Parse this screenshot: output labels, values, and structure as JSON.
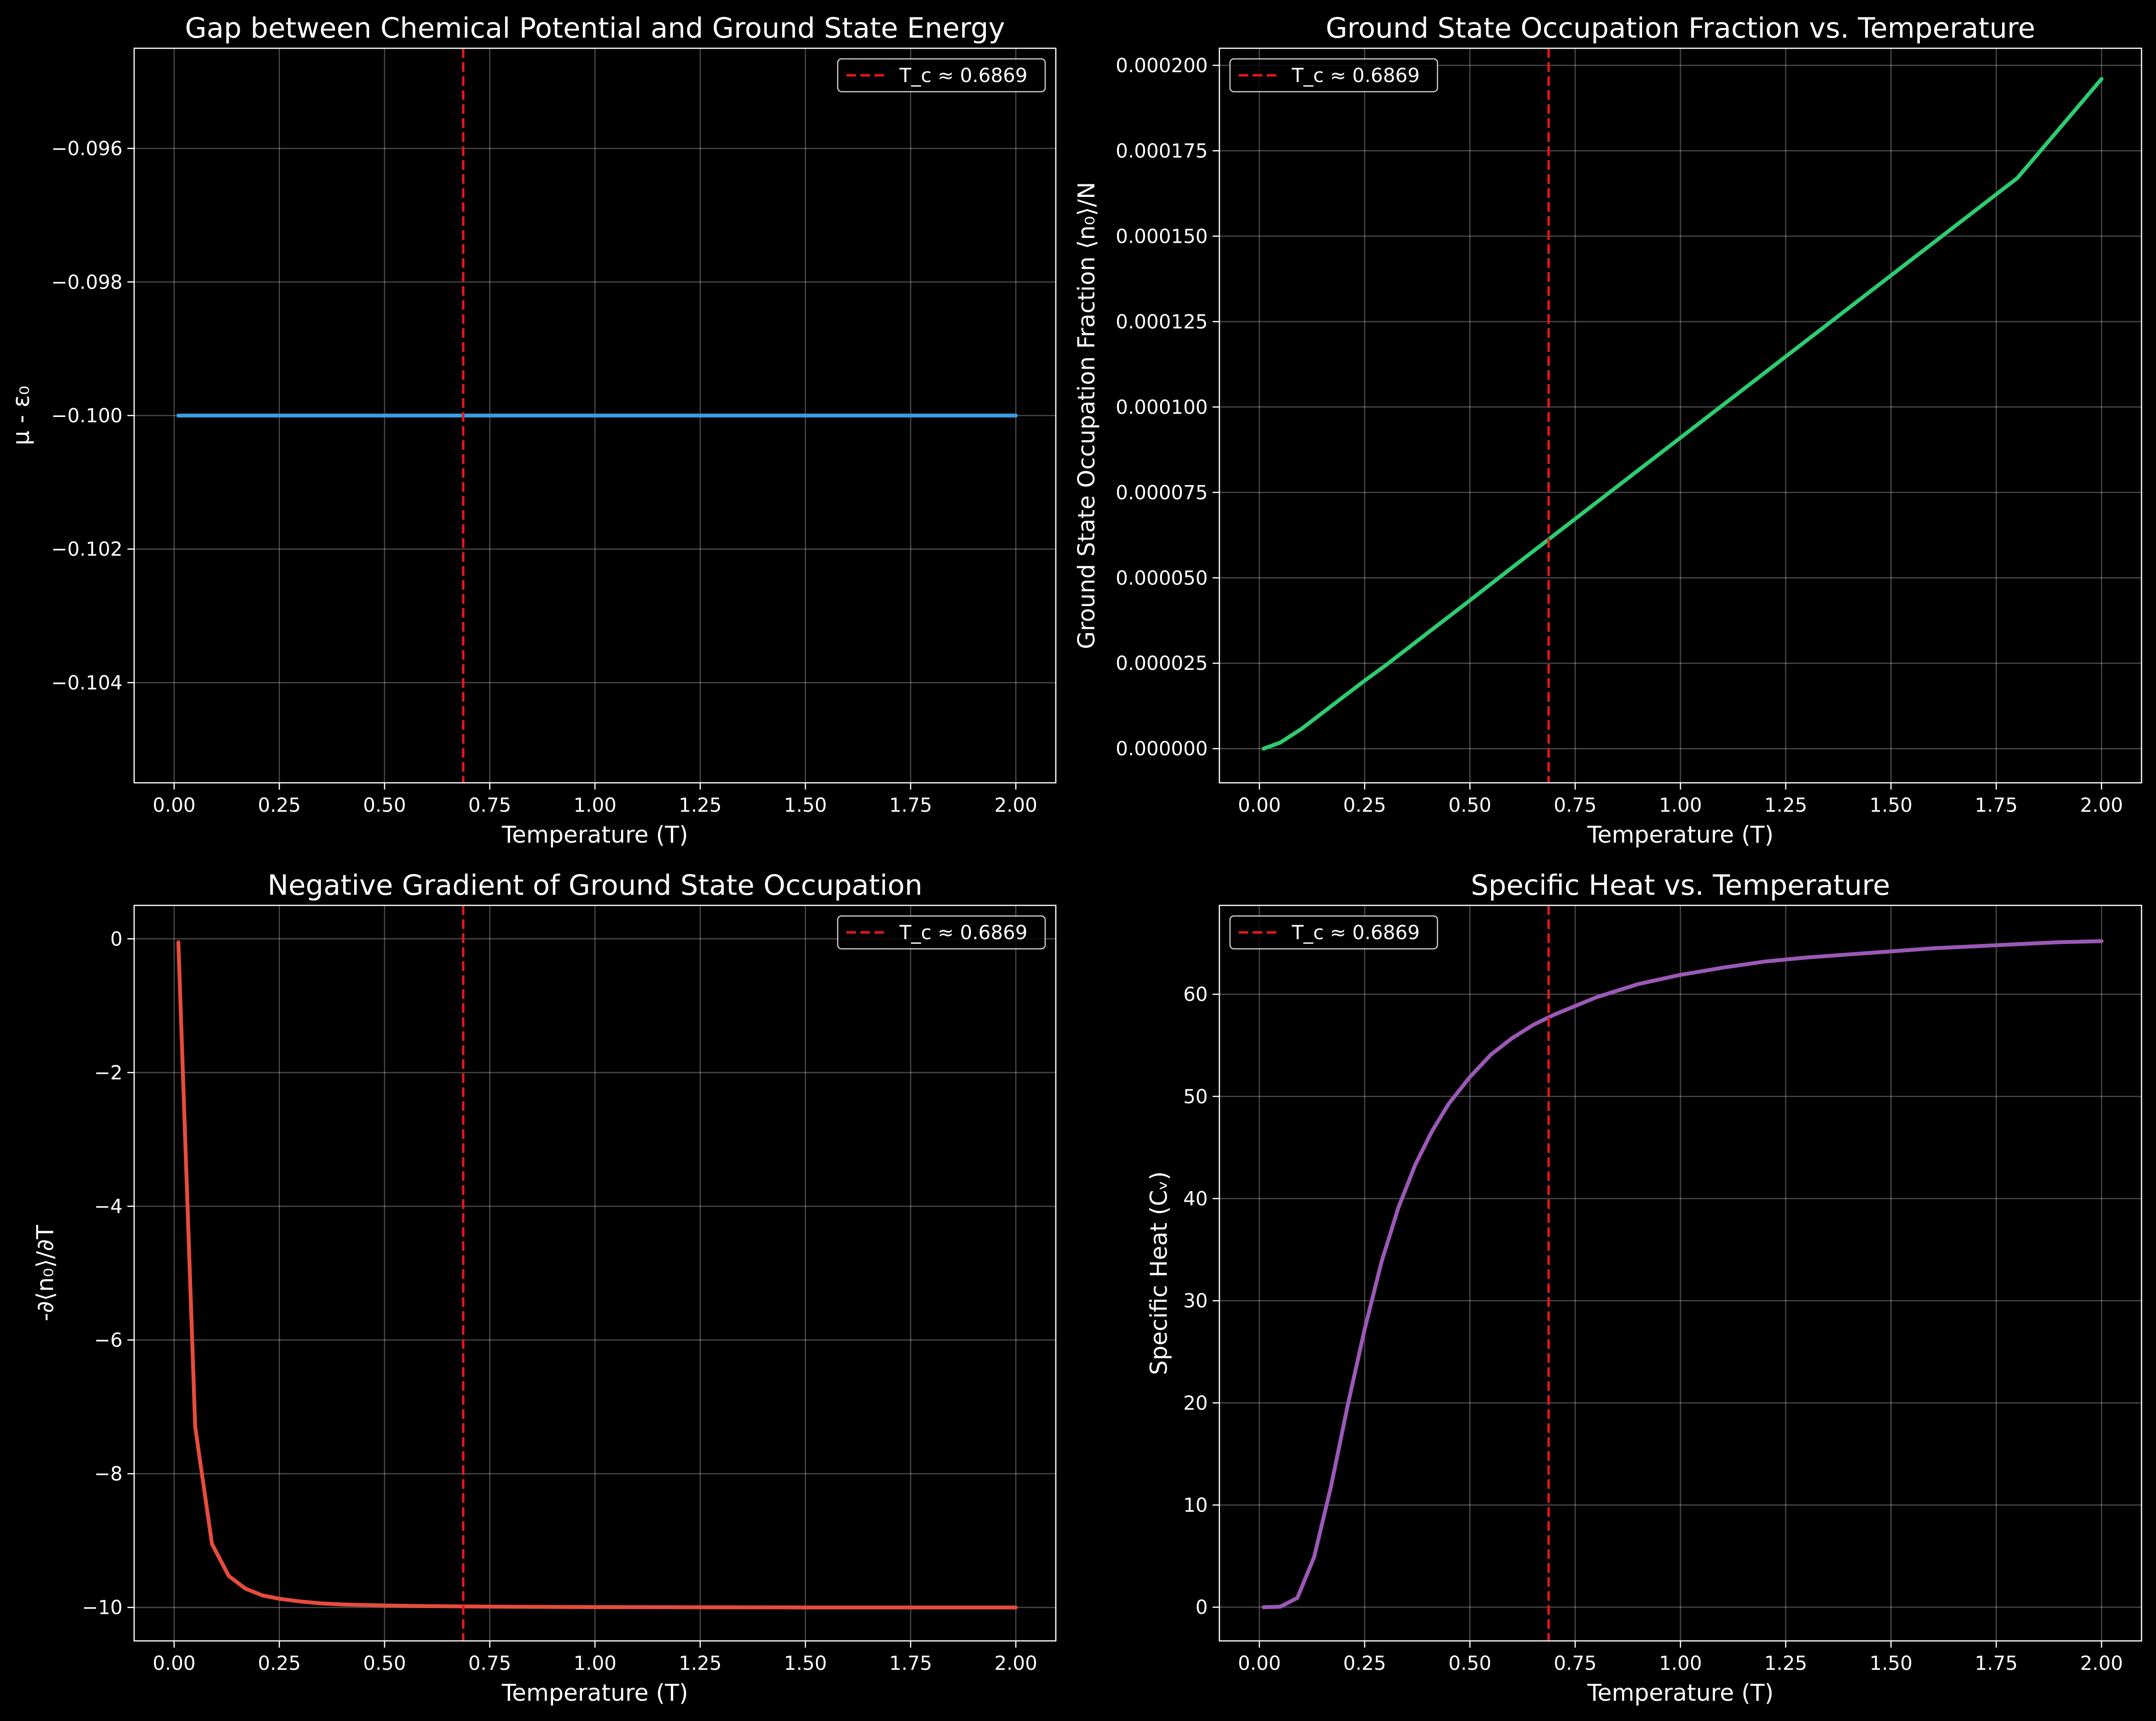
{
  "figure": {
    "background": "#000000"
  },
  "chart_data": [
    {
      "type": "line",
      "title": "Gap between Chemical Potential and Ground State Energy",
      "xlabel": "Temperature (T)",
      "ylabel": "μ - ε₀",
      "xlim": [
        -0.095,
        2.095
      ],
      "ylim": [
        -0.1055,
        -0.0945
      ],
      "xticks": [
        0,
        0.25,
        0.5,
        0.75,
        1.0,
        1.25,
        1.5,
        1.75,
        2.0
      ],
      "xtick_labels": [
        "0.00",
        "0.25",
        "0.50",
        "0.75",
        "1.00",
        "1.25",
        "1.50",
        "1.75",
        "2.00"
      ],
      "yticks": [
        -0.104,
        -0.102,
        -0.1,
        -0.098,
        -0.096
      ],
      "ytick_labels": [
        "−0.104",
        "−0.102",
        "−0.100",
        "−0.098",
        "−0.096"
      ],
      "grid": true,
      "legend_position": "top-right",
      "vline": {
        "x": 0.6869,
        "label": "T_c ≈ 0.6869",
        "color": "#e6171a"
      },
      "series": [
        {
          "color": "#3a9de1",
          "x": [
            0.01,
            0.1,
            0.25,
            0.5,
            0.75,
            1.0,
            1.25,
            1.5,
            1.75,
            2.0
          ],
          "y": [
            -0.1,
            -0.1,
            -0.1,
            -0.1,
            -0.1,
            -0.1,
            -0.1,
            -0.1,
            -0.1,
            -0.1
          ]
        }
      ]
    },
    {
      "type": "line",
      "title": "Ground State Occupation Fraction vs. Temperature",
      "xlabel": "Temperature (T)",
      "ylabel": "Ground State Occupation Fraction ⟨n₀⟩/N",
      "xlim": [
        -0.095,
        2.095
      ],
      "ylim": [
        -1e-05,
        0.000205
      ],
      "xticks": [
        0,
        0.25,
        0.5,
        0.75,
        1.0,
        1.25,
        1.5,
        1.75,
        2.0
      ],
      "xtick_labels": [
        "0.00",
        "0.25",
        "0.50",
        "0.75",
        "1.00",
        "1.25",
        "1.50",
        "1.75",
        "2.00"
      ],
      "yticks": [
        0,
        2.5e-05,
        5e-05,
        7.5e-05,
        0.0001,
        0.000125,
        0.00015,
        0.000175,
        0.0002
      ],
      "ytick_labels": [
        "0.000000",
        "0.000025",
        "0.000050",
        "0.000075",
        "0.000100",
        "0.000125",
        "0.000150",
        "0.000175",
        "0.000200"
      ],
      "grid": true,
      "legend_position": "top-left",
      "vline": {
        "x": 0.6869,
        "label": "T_c ≈ 0.6869",
        "color": "#e6171a"
      },
      "series": [
        {
          "color": "#2ecc71",
          "x": [
            0.01,
            0.05,
            0.1,
            0.15,
            0.2,
            0.25,
            0.3,
            0.4,
            0.5,
            0.6,
            0.7,
            0.8,
            1.0,
            1.2,
            1.4,
            1.6,
            1.8,
            2.0
          ],
          "y": [
            0.0,
            1.8e-06,
            5.8e-06,
            1.05e-05,
            1.52e-05,
            1.99e-05,
            2.44e-05,
            3.39e-05,
            4.34e-05,
            5.3e-05,
            6.25e-05,
            7.2e-05,
            9.1e-05,
            0.00011,
            0.000129,
            0.000148,
            0.000167,
            0.000196
          ]
        }
      ]
    },
    {
      "type": "line",
      "title": "Negative Gradient of Ground State Occupation",
      "xlabel": "Temperature (T)",
      "ylabel": "-∂⟨n₀⟩/∂T",
      "xlim": [
        -0.095,
        2.095
      ],
      "ylim": [
        -10.5,
        0.5
      ],
      "xticks": [
        0,
        0.25,
        0.5,
        0.75,
        1.0,
        1.25,
        1.5,
        1.75,
        2.0
      ],
      "xtick_labels": [
        "0.00",
        "0.25",
        "0.50",
        "0.75",
        "1.00",
        "1.25",
        "1.50",
        "1.75",
        "2.00"
      ],
      "yticks": [
        -10,
        -8,
        -6,
        -4,
        -2,
        0
      ],
      "ytick_labels": [
        "−10",
        "−8",
        "−6",
        "−4",
        "−2",
        "0"
      ],
      "grid": true,
      "legend_position": "top-right",
      "vline": {
        "x": 0.6869,
        "label": "T_c ≈ 0.6869",
        "color": "#e6171a"
      },
      "series": [
        {
          "color": "#e74c3c",
          "x": [
            0.01,
            0.05,
            0.09,
            0.13,
            0.17,
            0.21,
            0.25,
            0.3,
            0.35,
            0.4,
            0.5,
            0.6,
            0.7,
            0.8,
            1.0,
            1.5,
            2.0
          ],
          "y": [
            -0.05,
            -7.3,
            -9.05,
            -9.53,
            -9.72,
            -9.82,
            -9.87,
            -9.91,
            -9.94,
            -9.955,
            -9.97,
            -9.98,
            -9.985,
            -9.99,
            -9.995,
            -10.0,
            -10.0
          ]
        }
      ]
    },
    {
      "type": "line",
      "title": "Specific Heat vs. Temperature",
      "xlabel": "Temperature (T)",
      "ylabel": "Specific Heat (Cᵥ)",
      "xlim": [
        -0.095,
        2.095
      ],
      "ylim": [
        -3.3,
        68.7
      ],
      "xticks": [
        0,
        0.25,
        0.5,
        0.75,
        1.0,
        1.25,
        1.5,
        1.75,
        2.0
      ],
      "xtick_labels": [
        "0.00",
        "0.25",
        "0.50",
        "0.75",
        "1.00",
        "1.25",
        "1.50",
        "1.75",
        "2.00"
      ],
      "yticks": [
        0,
        10,
        20,
        30,
        40,
        50,
        60
      ],
      "ytick_labels": [
        "0",
        "10",
        "20",
        "30",
        "40",
        "50",
        "60"
      ],
      "grid": true,
      "legend_position": "top-left",
      "vline": {
        "x": 0.6869,
        "label": "T_c ≈ 0.6869",
        "color": "#e6171a"
      },
      "series": [
        {
          "color": "#9b59b6",
          "x": [
            0.01,
            0.05,
            0.09,
            0.13,
            0.17,
            0.21,
            0.25,
            0.29,
            0.33,
            0.37,
            0.41,
            0.45,
            0.5,
            0.55,
            0.6,
            0.65,
            0.7,
            0.8,
            0.9,
            1.0,
            1.1,
            1.2,
            1.3,
            1.4,
            1.5,
            1.6,
            1.7,
            1.8,
            1.9,
            2.0
          ],
          "y": [
            0.0,
            0.05,
            0.9,
            4.9,
            11.8,
            19.8,
            27.2,
            33.8,
            39.1,
            43.3,
            46.6,
            49.3,
            51.9,
            54.1,
            55.7,
            57.0,
            58.0,
            59.7,
            61.0,
            61.9,
            62.6,
            63.2,
            63.6,
            63.9,
            64.2,
            64.5,
            64.7,
            64.9,
            65.1,
            65.2
          ]
        }
      ]
    }
  ]
}
